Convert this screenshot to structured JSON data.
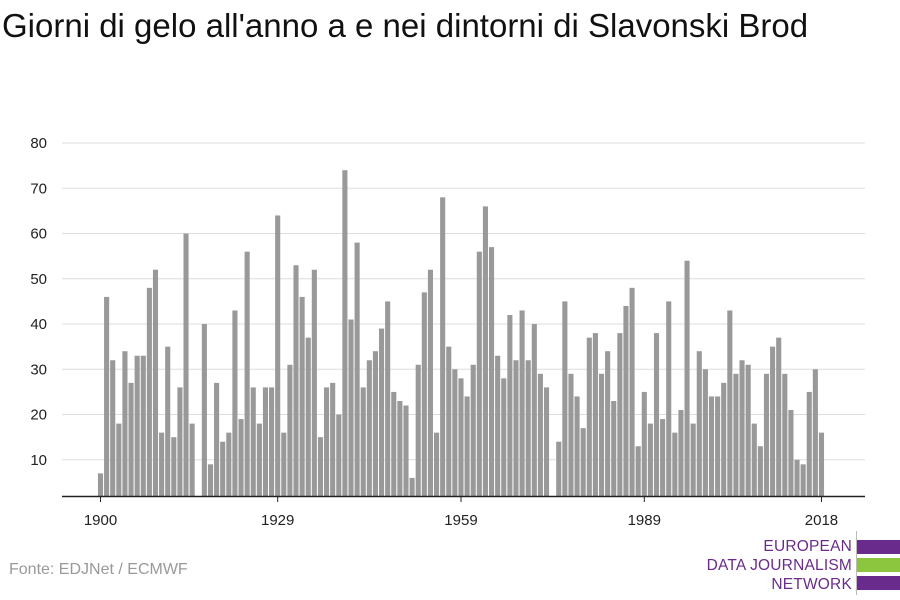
{
  "title": "Giorni di gelo all'anno a e nei dintorni di Slavonski Brod",
  "source": "Fonte: EDJNet / ECMWF",
  "logo": {
    "lines": [
      "EUROPEAN",
      "DATA JOURNALISM",
      "NETWORK"
    ],
    "colors": {
      "text": "#6a2c8c",
      "bar_purple": "#6a2c8c",
      "bar_green": "#8cc63f"
    }
  },
  "chart_data": {
    "type": "bar",
    "title": "Giorni di gelo all'anno a e nei dintorni di Slavonski Brod",
    "xlabel": "",
    "ylabel": "",
    "x_ticks": [
      1900,
      1929,
      1959,
      1989,
      2018
    ],
    "y_ticks": [
      10,
      20,
      30,
      40,
      50,
      60,
      70,
      80
    ],
    "ylim": [
      2,
      80
    ],
    "xlim": [
      1899.5,
      2021
    ],
    "grid": true,
    "bar_color": "#999999",
    "x": [
      1900,
      1901,
      1902,
      1903,
      1904,
      1905,
      1906,
      1907,
      1908,
      1909,
      1910,
      1911,
      1912,
      1913,
      1914,
      1915,
      1916,
      1917,
      1918,
      1919,
      1920,
      1921,
      1922,
      1923,
      1924,
      1925,
      1926,
      1927,
      1928,
      1929,
      1930,
      1931,
      1932,
      1933,
      1934,
      1935,
      1936,
      1937,
      1938,
      1939,
      1940,
      1941,
      1942,
      1943,
      1944,
      1945,
      1946,
      1947,
      1948,
      1949,
      1950,
      1951,
      1952,
      1953,
      1954,
      1955,
      1956,
      1957,
      1958,
      1959,
      1960,
      1961,
      1962,
      1963,
      1964,
      1965,
      1966,
      1967,
      1968,
      1969,
      1970,
      1971,
      1972,
      1973,
      1974,
      1975,
      1976,
      1977,
      1978,
      1979,
      1980,
      1981,
      1982,
      1983,
      1984,
      1985,
      1986,
      1987,
      1988,
      1989,
      1990,
      1991,
      1992,
      1993,
      1994,
      1995,
      1996,
      1997,
      1998,
      1999,
      2000,
      2001,
      2002,
      2003,
      2004,
      2005,
      2006,
      2007,
      2008,
      2009,
      2010,
      2011,
      2012,
      2013,
      2014,
      2015,
      2016,
      2017,
      2018
    ],
    "values": [
      7,
      46,
      32,
      18,
      34,
      27,
      33,
      33,
      48,
      52,
      16,
      35,
      15,
      26,
      60,
      18,
      0,
      40,
      9,
      27,
      14,
      16,
      43,
      19,
      56,
      26,
      18,
      26,
      26,
      64,
      16,
      31,
      53,
      46,
      37,
      52,
      15,
      26,
      27,
      20,
      74,
      41,
      58,
      26,
      32,
      34,
      39,
      45,
      25,
      23,
      22,
      6,
      31,
      47,
      52,
      16,
      68,
      35,
      30,
      28,
      24,
      31,
      56,
      66,
      57,
      33,
      28,
      42,
      32,
      43,
      32,
      40,
      29,
      26,
      0,
      14,
      45,
      29,
      24,
      17,
      37,
      38,
      29,
      34,
      23,
      38,
      44,
      48,
      13,
      25,
      18,
      38,
      19,
      45,
      16,
      21,
      54,
      18,
      34,
      30,
      24,
      24,
      27,
      43,
      29,
      32,
      31,
      18,
      13,
      29,
      35,
      37,
      29,
      21,
      10,
      9,
      25,
      30,
      16
    ]
  }
}
